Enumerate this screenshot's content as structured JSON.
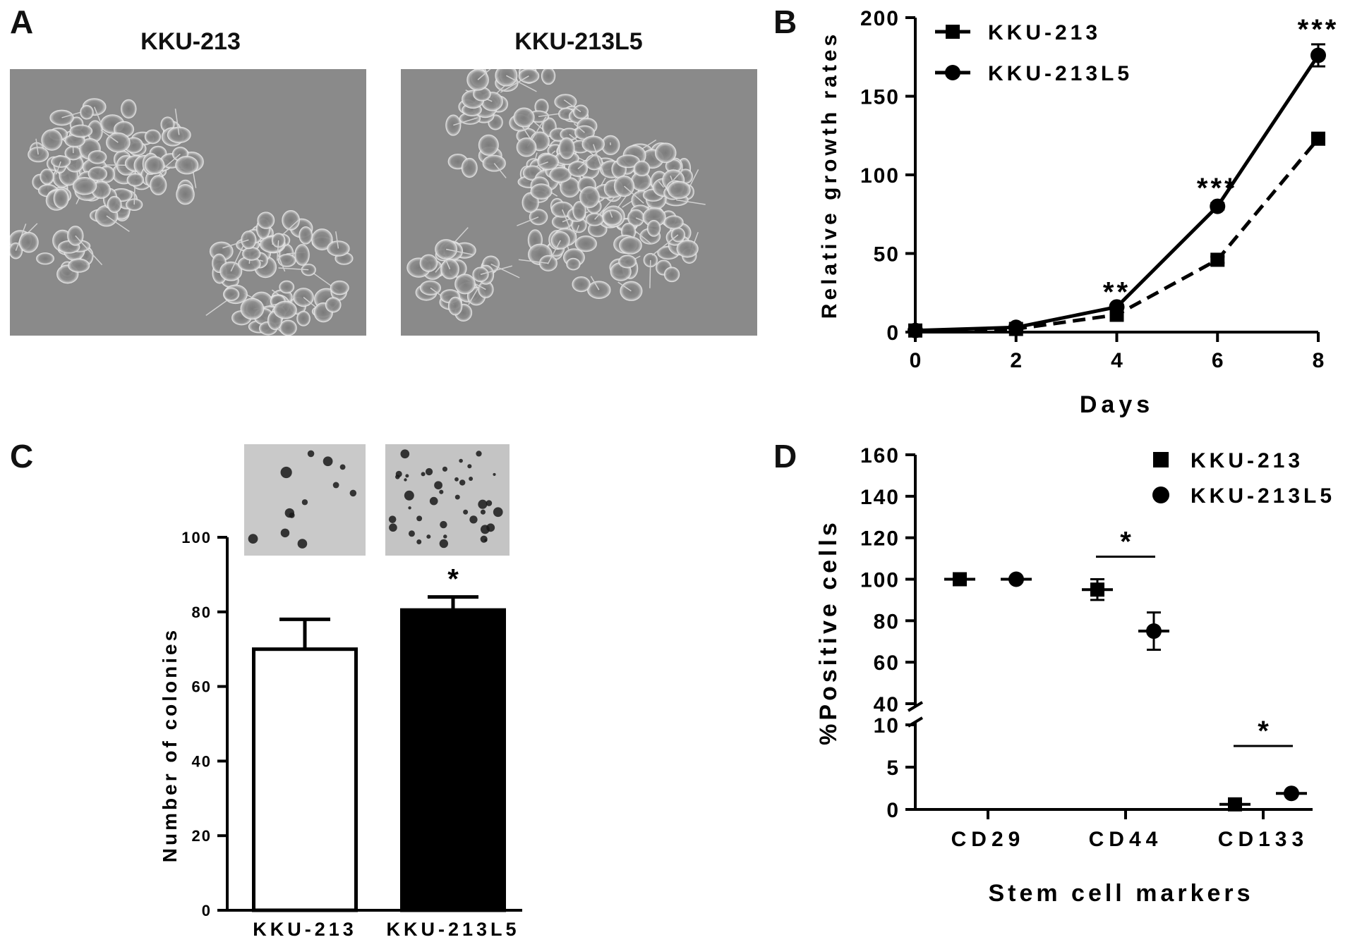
{
  "panels": {
    "a": {
      "letter": "A",
      "image_titles": [
        "KKU-213",
        "KKU-213L5"
      ]
    },
    "b": {
      "letter": "B"
    },
    "c": {
      "letter": "C"
    },
    "d": {
      "letter": "D"
    }
  },
  "colors": {
    "ink": "#000000",
    "micrograph_bg": "#8a8a8a",
    "colony_bg": "#c9c9c9",
    "bar_open": "#ffffff",
    "bar_filled": "#000000"
  },
  "chart_data": [
    {
      "type": "line",
      "panel": "B",
      "xlabel": "Days",
      "ylabel": "Relative growth rates",
      "x": [
        0,
        2,
        4,
        6,
        8
      ],
      "xlim": [
        0,
        8
      ],
      "ylim": [
        0,
        200
      ],
      "xticks": [
        "0",
        "2",
        "4",
        "6",
        "8"
      ],
      "yticks": [
        "0",
        "50",
        "100",
        "150",
        "200"
      ],
      "legend_position": "top-left",
      "series": [
        {
          "name": "KKU-213",
          "marker": "square",
          "line": "dashed",
          "values": [
            1,
            2,
            11,
            46,
            123
          ],
          "errors": [
            0,
            0,
            0,
            2,
            2
          ]
        },
        {
          "name": "KKU-213L5",
          "marker": "circle",
          "line": "solid",
          "values": [
            1,
            3,
            16,
            80,
            176
          ],
          "errors": [
            0,
            0,
            0,
            2,
            7
          ]
        }
      ],
      "annotations": [
        {
          "x": 4,
          "text": "**"
        },
        {
          "x": 6,
          "text": "***"
        },
        {
          "x": 8,
          "text": "***"
        }
      ]
    },
    {
      "type": "bar",
      "panel": "C",
      "ylabel": "Number of colonies",
      "categories": [
        "KKU-213",
        "KKU-213L5"
      ],
      "values": [
        70,
        80.5
      ],
      "errors": [
        8,
        3.5
      ],
      "fills": [
        "open",
        "filled"
      ],
      "ylim": [
        0,
        100
      ],
      "yticks": [
        "0",
        "20",
        "40",
        "60",
        "80",
        "100"
      ],
      "annotations": [
        {
          "category": "KKU-213L5",
          "text": "*"
        }
      ]
    },
    {
      "type": "scatter",
      "panel": "D",
      "xlabel": "Stem cell markers",
      "ylabel": "%Positive cells",
      "categories": [
        "CD29",
        "CD44",
        "CD133"
      ],
      "axis_break": {
        "lower": [
          0,
          10
        ],
        "upper": [
          40,
          160
        ]
      },
      "yticks_upper": [
        "40",
        "60",
        "80",
        "100",
        "120",
        "140",
        "160"
      ],
      "yticks_lower": [
        "0",
        "5",
        "10"
      ],
      "legend_position": "top-right",
      "series": [
        {
          "name": "KKU-213",
          "marker": "square",
          "values": [
            100,
            95,
            0.6
          ],
          "errors": [
            0,
            5,
            0.3
          ]
        },
        {
          "name": "KKU-213L5",
          "marker": "circle",
          "values": [
            100,
            75,
            1.9
          ],
          "errors": [
            0,
            9,
            0.2
          ]
        }
      ],
      "annotations": [
        {
          "category": "CD44",
          "text": "*"
        },
        {
          "category": "CD133",
          "text": "*"
        }
      ]
    }
  ]
}
